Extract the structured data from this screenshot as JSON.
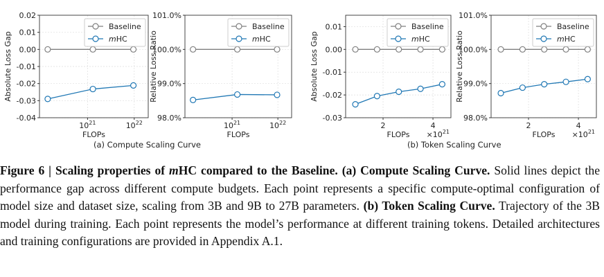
{
  "figure": {
    "subcaption_a": "(a) Compute Scaling Curve",
    "subcaption_b": "(b) Token Scaling Curve",
    "caption": {
      "label": "Figure 6 | ",
      "title": "Scaling properties of ",
      "title_em": "m",
      "title_rest": "HC compared to the Baseline.",
      "a_label": " (a) Compute Scaling Curve.",
      "a_text": " Solid lines depict the performance gap across different compute budgets. Each point represents a specific compute-optimal configuration of model size and dataset size, scaling from 3B and 9B to 27B parameters.",
      "b_label": " (b) Token Scaling Curve.",
      "b_text": " Trajectory of the 3B model during training. Each point represents the model’s performance at different training tokens. Detailed architectures and training configurations are provided in Appendix A.1."
    }
  },
  "colors": {
    "baseline": "#7f7f7f",
    "mhc": "#1f77b4"
  },
  "chart_data": [
    {
      "type": "line",
      "xscale": "log",
      "xlabel": "FLOPs",
      "ylabel": "Absolute Loss Gap",
      "xticks": [
        "10^21",
        "10^22"
      ],
      "xtick_values": [
        1e+21,
        1e+22
      ],
      "yticks": [
        "0.02",
        "0.01",
        "0.00",
        "-0.01",
        "-0.02",
        "-0.03",
        "-0.04"
      ],
      "ylim": [
        -0.04,
        0.02
      ],
      "grid": true,
      "legend": "top-right",
      "x": [
        1.4e+20,
        1.3e+21,
        9.6e+21
      ],
      "series": [
        {
          "name": "Baseline",
          "values": [
            0,
            0,
            0
          ]
        },
        {
          "name": "mHC",
          "values": [
            -0.029,
            -0.0232,
            -0.0211
          ]
        }
      ]
    },
    {
      "type": "line",
      "xscale": "log",
      "xlabel": "FLOPs",
      "ylabel": "Relative Loss Ratio",
      "xticks": [
        "10^21",
        "10^22"
      ],
      "xtick_values": [
        1e+21,
        1e+22
      ],
      "yticks": [
        "101.0%",
        "100.0%",
        "99.0%",
        "98.0%"
      ],
      "ylim": [
        98,
        101
      ],
      "grid": true,
      "legend": "top-right",
      "x": [
        1.4e+20,
        1.3e+21,
        9.6e+21
      ],
      "series": [
        {
          "name": "Baseline",
          "values": [
            100,
            100,
            100
          ]
        },
        {
          "name": "mHC",
          "values": [
            98.52,
            98.68,
            98.67
          ]
        }
      ]
    },
    {
      "type": "line",
      "xscale": "linear",
      "xlabel": "FLOPs",
      "xoffset_label": "×10^21",
      "ylabel": "Absolute Loss Gap",
      "xticks": [
        "2",
        "4"
      ],
      "xtick_values": [
        2,
        4
      ],
      "yticks": [
        "0.01",
        "0.00",
        "-0.01",
        "-0.02",
        "-0.03"
      ],
      "ylim": [
        -0.03,
        0.015
      ],
      "grid": true,
      "legend": "top-right",
      "x": [
        0.89,
        1.76,
        2.63,
        3.5,
        4.37
      ],
      "series": [
        {
          "name": "Baseline",
          "values": [
            0,
            0,
            0,
            0,
            0
          ]
        },
        {
          "name": "mHC",
          "values": [
            -0.0241,
            -0.0205,
            -0.0186,
            -0.0173,
            -0.0153
          ]
        }
      ]
    },
    {
      "type": "line",
      "xscale": "linear",
      "xlabel": "FLOPs",
      "xoffset_label": "×10^21",
      "ylabel": "Relative Loss Ratio",
      "xticks": [
        "2",
        "4"
      ],
      "xtick_values": [
        2,
        4
      ],
      "yticks": [
        "101.0%",
        "100.0%",
        "99.0%",
        "98.0%"
      ],
      "ylim": [
        98,
        101
      ],
      "grid": true,
      "legend": "top-right",
      "x": [
        0.89,
        1.76,
        2.63,
        3.5,
        4.37
      ],
      "series": [
        {
          "name": "Baseline",
          "values": [
            100,
            100,
            100,
            100,
            100
          ]
        },
        {
          "name": "mHC",
          "values": [
            98.72,
            98.88,
            98.98,
            99.05,
            99.13
          ]
        }
      ]
    }
  ]
}
